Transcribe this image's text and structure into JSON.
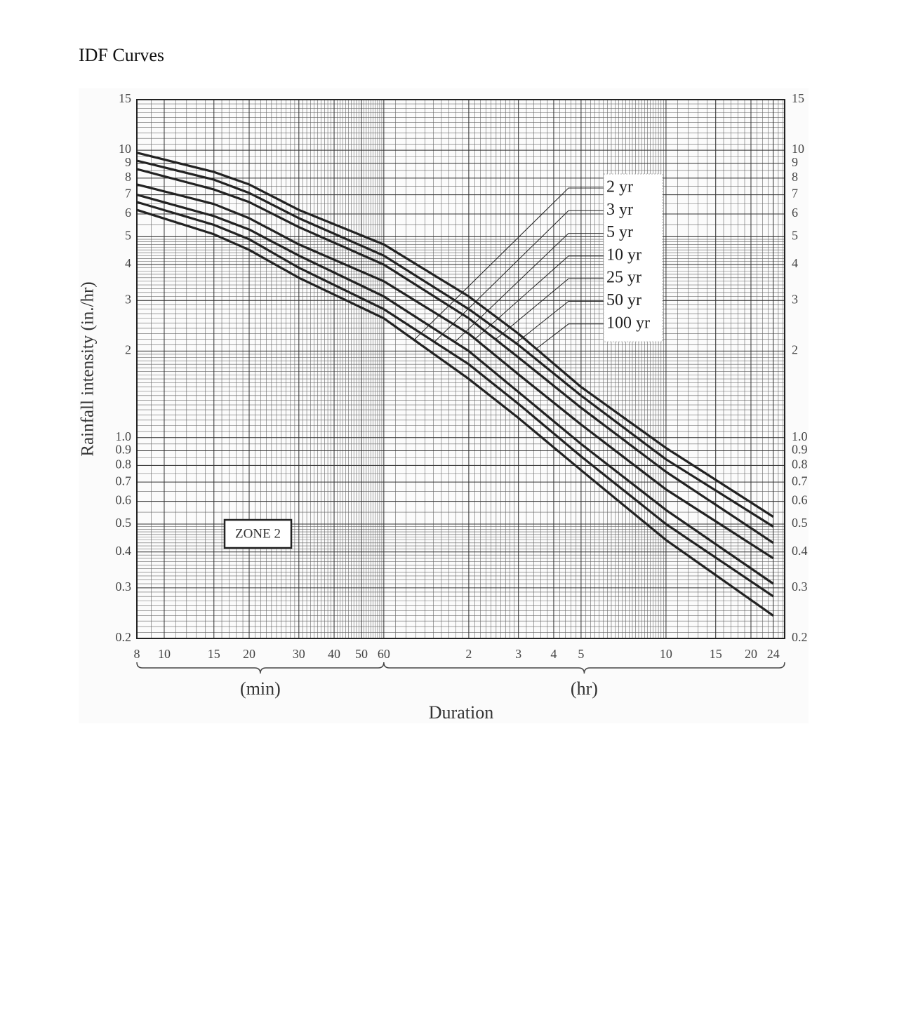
{
  "title": "IDF Curves",
  "chart_data": {
    "type": "line",
    "log_x": true,
    "log_y": true,
    "grid": true,
    "ylabel": "Rainfall intensity (in./hr)",
    "xlabel": "Duration",
    "x_unit_labels": [
      "(min)",
      "(hr)"
    ],
    "annotation": "ZONE 2",
    "xlim": [
      8,
      1580
    ],
    "ylim": [
      0.2,
      15
    ],
    "xticks": [
      8,
      10,
      15,
      20,
      30,
      40,
      50,
      60,
      {
        "value": 120,
        "label": "2"
      },
      {
        "value": 180,
        "label": "3"
      },
      {
        "value": 240,
        "label": "4"
      },
      {
        "value": 300,
        "label": "5"
      },
      {
        "value": 600,
        "label": "10"
      },
      {
        "value": 900,
        "label": "15"
      },
      {
        "value": 1200,
        "label": "20"
      },
      {
        "value": 1440,
        "label": "24"
      }
    ],
    "yticks": [
      0.2,
      0.3,
      0.4,
      0.5,
      0.6,
      0.7,
      0.8,
      0.9,
      {
        "value": 1,
        "label": "1.0"
      },
      2,
      3,
      4,
      5,
      6,
      7,
      8,
      9,
      10,
      15
    ],
    "x": [
      8,
      15,
      20,
      30,
      60,
      120,
      180,
      300,
      600,
      1440
    ],
    "series": [
      {
        "name": "2 yr",
        "color": "#222222",
        "values": [
          6.2,
          5.1,
          4.5,
          3.6,
          2.6,
          1.6,
          1.17,
          0.77,
          0.44,
          0.24
        ]
      },
      {
        "name": "3 yr",
        "color": "#222222",
        "values": [
          6.6,
          5.5,
          4.9,
          3.9,
          2.8,
          1.8,
          1.31,
          0.86,
          0.5,
          0.28
        ]
      },
      {
        "name": "5 yr",
        "color": "#222222",
        "values": [
          7.0,
          5.9,
          5.3,
          4.3,
          3.1,
          2.0,
          1.44,
          0.95,
          0.56,
          0.31
        ]
      },
      {
        "name": "10 yr",
        "color": "#222222",
        "values": [
          7.6,
          6.5,
          5.8,
          4.7,
          3.5,
          2.3,
          1.66,
          1.11,
          0.66,
          0.38
        ]
      },
      {
        "name": "25 yr",
        "color": "#222222",
        "values": [
          8.6,
          7.3,
          6.6,
          5.4,
          4.0,
          2.6,
          1.9,
          1.27,
          0.76,
          0.43
        ]
      },
      {
        "name": "50 yr",
        "color": "#222222",
        "values": [
          9.2,
          7.9,
          7.1,
          5.8,
          4.3,
          2.8,
          2.1,
          1.4,
          0.84,
          0.49
        ]
      },
      {
        "name": "100 yr",
        "color": "#222222",
        "values": [
          9.8,
          8.4,
          7.6,
          6.2,
          4.7,
          3.1,
          2.3,
          1.5,
          0.92,
          0.53
        ]
      }
    ]
  }
}
